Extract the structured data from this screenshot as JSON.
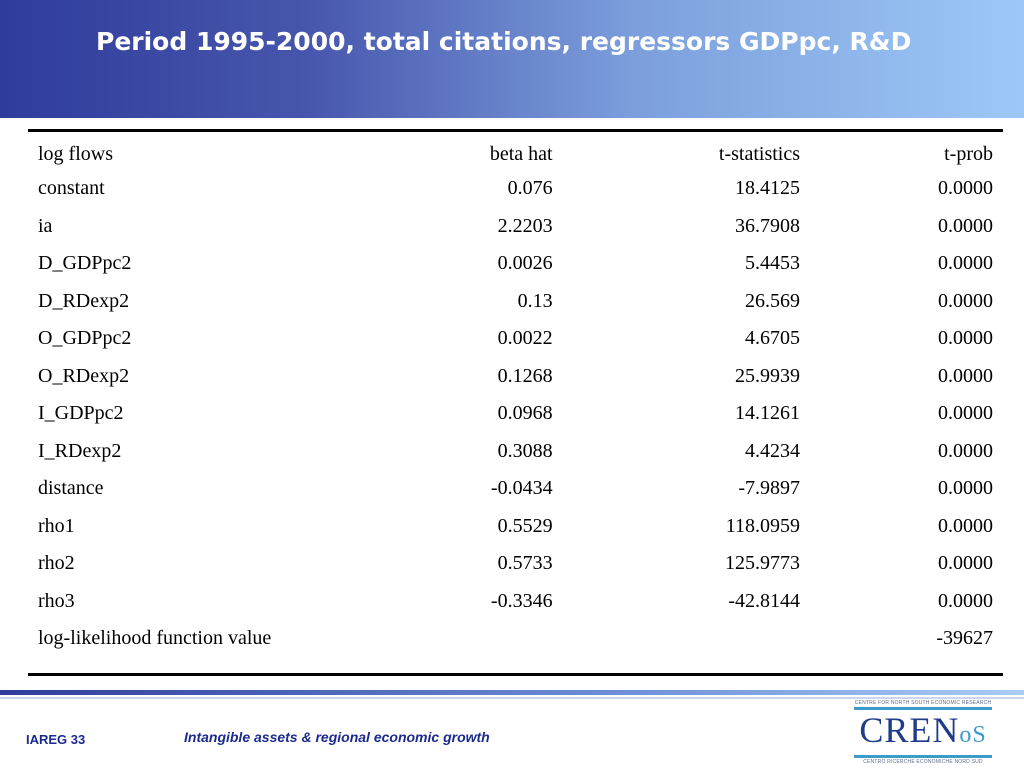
{
  "slide": {
    "title": "Period 1995-2000, total citations, regressors GDPpc, R&D"
  },
  "table": {
    "headers": [
      "log flows",
      "beta hat",
      "t-statistics",
      "t-prob"
    ],
    "rows": [
      [
        "constant",
        "0.076",
        "18.4125",
        "0.0000"
      ],
      [
        "ia",
        "2.2203",
        "36.7908",
        "0.0000"
      ],
      [
        "D_GDPpc2",
        "0.0026",
        "5.4453",
        "0.0000"
      ],
      [
        "D_RDexp2",
        "0.13",
        "26.569",
        "0.0000"
      ],
      [
        "O_GDPpc2",
        "0.0022",
        "4.6705",
        "0.0000"
      ],
      [
        "O_RDexp2",
        "0.1268",
        "25.9939",
        "0.0000"
      ],
      [
        "I_GDPpc2",
        "0.0968",
        "14.1261",
        "0.0000"
      ],
      [
        "I_RDexp2",
        "0.3088",
        "4.4234",
        "0.0000"
      ],
      [
        "distance",
        "-0.0434",
        "-7.9897",
        "0.0000"
      ],
      [
        "rho1",
        "0.5529",
        "118.0959",
        "0.0000"
      ],
      [
        "rho2",
        "0.5733",
        "125.9773",
        "0.0000"
      ],
      [
        "rho3",
        "-0.3346",
        "-42.8144",
        "0.0000"
      ]
    ],
    "footer_row": [
      "log-likelihood function value",
      "",
      "",
      "-39627"
    ]
  },
  "footer": {
    "page": "IAREG 33",
    "title": "Intangible assets & regional economic growth"
  },
  "logo": {
    "top_text": "CENTRE FOR NORTH SOUTH ECONOMIC RESEARCH",
    "mark_main": "CREN",
    "mark_small": "oS",
    "bottom_text": "CENTRO RICERCHE ECONOMICHE NORD SUD"
  },
  "colors": {
    "header_start": "#2f3c9b",
    "header_end": "#9cc8f7",
    "footer_text": "#1b2a8f"
  }
}
